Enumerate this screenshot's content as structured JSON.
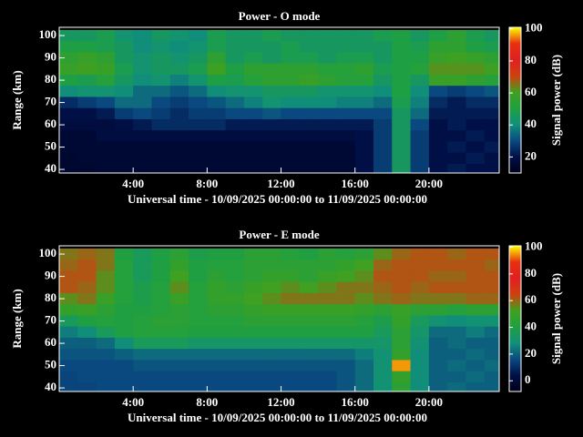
{
  "chart_data": [
    {
      "type": "heatmap",
      "title": "Power - O mode",
      "xlabel": "Universal time - 10/09/2025 00:00:00 to 11/09/2025 00:00:00",
      "ylabel": "Range (km)",
      "x": [
        0,
        1,
        2,
        3,
        4,
        5,
        6,
        7,
        8,
        9,
        10,
        11,
        12,
        13,
        14,
        15,
        16,
        17,
        18,
        19,
        20,
        21,
        22,
        23
      ],
      "y": [
        100,
        95,
        90,
        85,
        80,
        75,
        70,
        65,
        60,
        55,
        50,
        45,
        40
      ],
      "z": [
        [
          45,
          45,
          48,
          42,
          40,
          45,
          42,
          40,
          48,
          45,
          45,
          48,
          45,
          45,
          45,
          45,
          45,
          48,
          50,
          45,
          50,
          55,
          48,
          45
        ],
        [
          50,
          50,
          48,
          45,
          40,
          42,
          40,
          42,
          48,
          45,
          45,
          45,
          48,
          45,
          45,
          45,
          45,
          45,
          50,
          48,
          55,
          55,
          50,
          48
        ],
        [
          55,
          58,
          55,
          45,
          42,
          45,
          42,
          45,
          55,
          45,
          48,
          45,
          48,
          48,
          45,
          48,
          48,
          45,
          50,
          50,
          58,
          60,
          58,
          55
        ],
        [
          58,
          60,
          58,
          48,
          42,
          45,
          45,
          48,
          60,
          50,
          55,
          55,
          55,
          55,
          52,
          52,
          55,
          48,
          50,
          52,
          62,
          62,
          62,
          60
        ],
        [
          50,
          48,
          52,
          45,
          40,
          42,
          38,
          42,
          50,
          48,
          52,
          55,
          55,
          58,
          55,
          52,
          52,
          45,
          50,
          45,
          58,
          58,
          55,
          52
        ],
        [
          40,
          42,
          42,
          40,
          35,
          35,
          32,
          35,
          40,
          42,
          42,
          45,
          45,
          45,
          42,
          42,
          42,
          40,
          50,
          40,
          30,
          28,
          30,
          32
        ],
        [
          25,
          28,
          30,
          35,
          35,
          30,
          28,
          30,
          32,
          35,
          38,
          42,
          40,
          40,
          40,
          38,
          38,
          35,
          48,
          38,
          25,
          22,
          25,
          25
        ],
        [
          20,
          20,
          22,
          28,
          30,
          28,
          25,
          28,
          28,
          30,
          30,
          32,
          30,
          30,
          30,
          30,
          30,
          30,
          45,
          35,
          22,
          22,
          22,
          22
        ],
        [
          18,
          18,
          18,
          20,
          22,
          25,
          25,
          25,
          25,
          22,
          22,
          22,
          22,
          22,
          22,
          22,
          22,
          28,
          45,
          30,
          20,
          22,
          20,
          20
        ],
        [
          16,
          16,
          18,
          18,
          18,
          18,
          18,
          18,
          18,
          18,
          18,
          18,
          18,
          18,
          18,
          18,
          20,
          28,
          45,
          28,
          20,
          20,
          22,
          20
        ],
        [
          16,
          16,
          16,
          16,
          16,
          16,
          16,
          16,
          16,
          16,
          16,
          16,
          16,
          16,
          16,
          16,
          20,
          28,
          45,
          28,
          20,
          22,
          20,
          22
        ],
        [
          15,
          16,
          16,
          16,
          16,
          16,
          16,
          16,
          16,
          16,
          16,
          16,
          16,
          16,
          16,
          16,
          20,
          28,
          45,
          28,
          20,
          20,
          22,
          20
        ],
        [
          15,
          15,
          16,
          16,
          16,
          16,
          16,
          16,
          16,
          16,
          16,
          16,
          16,
          16,
          16,
          16,
          20,
          28,
          45,
          28,
          20,
          22,
          20,
          20
        ]
      ],
      "xlim": [
        0,
        23.8
      ],
      "ylim": [
        38.4,
        103.7
      ],
      "xticks": [
        {
          "value": 4,
          "label": "4:00"
        },
        {
          "value": 8,
          "label": "8:00"
        },
        {
          "value": 12,
          "label": "12:00"
        },
        {
          "value": 16,
          "label": "16:00"
        },
        {
          "value": 20,
          "label": "20:00"
        }
      ],
      "yticks": [
        40,
        50,
        60,
        70,
        80,
        90,
        100
      ],
      "colorbar": {
        "label": "Signal power (dB)",
        "lim": [
          10,
          101
        ],
        "ticks": [
          20,
          40,
          60,
          80,
          100
        ]
      },
      "colors": [
        "#000018",
        "#001048",
        "#0a4a80",
        "#10907a",
        "#20a040",
        "#40a020",
        "#d04010",
        "#e02020",
        "#e83010",
        "#ffff00"
      ]
    },
    {
      "type": "heatmap",
      "title": "Power - E mode",
      "xlabel": "Universal time - 10/09/2025 00:00:00 to 11/09/2025 00:00:00",
      "ylabel": "Range (km)",
      "x": [
        0,
        1,
        2,
        3,
        4,
        5,
        6,
        7,
        8,
        9,
        10,
        11,
        12,
        13,
        14,
        15,
        16,
        17,
        18,
        19,
        20,
        21,
        22,
        23
      ],
      "y": [
        100,
        95,
        90,
        85,
        80,
        75,
        70,
        65,
        60,
        55,
        50,
        45,
        40
      ],
      "z": [
        [
          58,
          60,
          58,
          40,
          35,
          40,
          45,
          38,
          40,
          40,
          45,
          45,
          42,
          40,
          45,
          42,
          45,
          55,
          60,
          62,
          62,
          60,
          62,
          62
        ],
        [
          60,
          62,
          58,
          42,
          35,
          40,
          48,
          40,
          42,
          42,
          45,
          45,
          45,
          45,
          45,
          48,
          52,
          60,
          62,
          62,
          62,
          62,
          62,
          60
        ],
        [
          62,
          62,
          55,
          42,
          35,
          40,
          52,
          40,
          45,
          42,
          45,
          48,
          48,
          45,
          50,
          52,
          55,
          62,
          62,
          62,
          60,
          60,
          62,
          62
        ],
        [
          62,
          60,
          55,
          42,
          38,
          42,
          55,
          42,
          48,
          45,
          50,
          52,
          55,
          52,
          55,
          58,
          58,
          60,
          62,
          60,
          62,
          62,
          62,
          62
        ],
        [
          55,
          58,
          50,
          42,
          38,
          42,
          50,
          42,
          48,
          48,
          52,
          55,
          58,
          58,
          58,
          58,
          55,
          58,
          60,
          58,
          58,
          58,
          60,
          60
        ],
        [
          48,
          50,
          45,
          40,
          40,
          42,
          45,
          42,
          45,
          45,
          48,
          50,
          50,
          50,
          50,
          50,
          48,
          45,
          50,
          45,
          45,
          42,
          45,
          45
        ],
        [
          35,
          40,
          42,
          40,
          42,
          45,
          45,
          42,
          42,
          42,
          45,
          45,
          45,
          45,
          45,
          45,
          42,
          38,
          48,
          35,
          30,
          28,
          30,
          30
        ],
        [
          25,
          28,
          35,
          40,
          42,
          42,
          42,
          40,
          40,
          40,
          40,
          40,
          40,
          40,
          40,
          40,
          40,
          35,
          45,
          32,
          22,
          22,
          25,
          22
        ],
        [
          20,
          20,
          22,
          28,
          35,
          35,
          35,
          32,
          32,
          32,
          32,
          32,
          32,
          32,
          32,
          32,
          32,
          32,
          45,
          30,
          20,
          22,
          20,
          20
        ],
        [
          18,
          18,
          18,
          20,
          22,
          22,
          22,
          22,
          22,
          22,
          22,
          22,
          22,
          22,
          22,
          22,
          25,
          30,
          48,
          28,
          20,
          20,
          22,
          20
        ],
        [
          16,
          16,
          16,
          16,
          18,
          18,
          18,
          18,
          18,
          18,
          18,
          18,
          18,
          18,
          18,
          18,
          22,
          30,
          95,
          28,
          20,
          22,
          20,
          22
        ],
        [
          15,
          16,
          16,
          16,
          16,
          16,
          16,
          16,
          16,
          16,
          16,
          16,
          16,
          16,
          16,
          18,
          22,
          30,
          48,
          28,
          20,
          20,
          22,
          20
        ],
        [
          15,
          15,
          16,
          16,
          16,
          16,
          16,
          16,
          16,
          16,
          16,
          16,
          16,
          16,
          16,
          18,
          22,
          30,
          45,
          28,
          20,
          22,
          20,
          20
        ]
      ],
      "xlim": [
        0,
        23.8
      ],
      "ylim": [
        38.4,
        103.7
      ],
      "xticks": [
        {
          "value": 4,
          "label": "4:00"
        },
        {
          "value": 8,
          "label": "8:00"
        },
        {
          "value": 12,
          "label": "12:00"
        },
        {
          "value": 16,
          "label": "16:00"
        },
        {
          "value": 20,
          "label": "20:00"
        }
      ],
      "yticks": [
        40,
        50,
        60,
        70,
        80,
        90,
        100
      ],
      "colorbar": {
        "label": "Signal power (dB)",
        "lim": [
          -8,
          101
        ],
        "ticks": [
          0,
          20,
          40,
          60,
          80,
          100
        ]
      },
      "colors": [
        "#000018",
        "#001048",
        "#0a4a80",
        "#10907a",
        "#20a040",
        "#40a020",
        "#d04010",
        "#e02020",
        "#e83010",
        "#ffff00"
      ]
    }
  ]
}
